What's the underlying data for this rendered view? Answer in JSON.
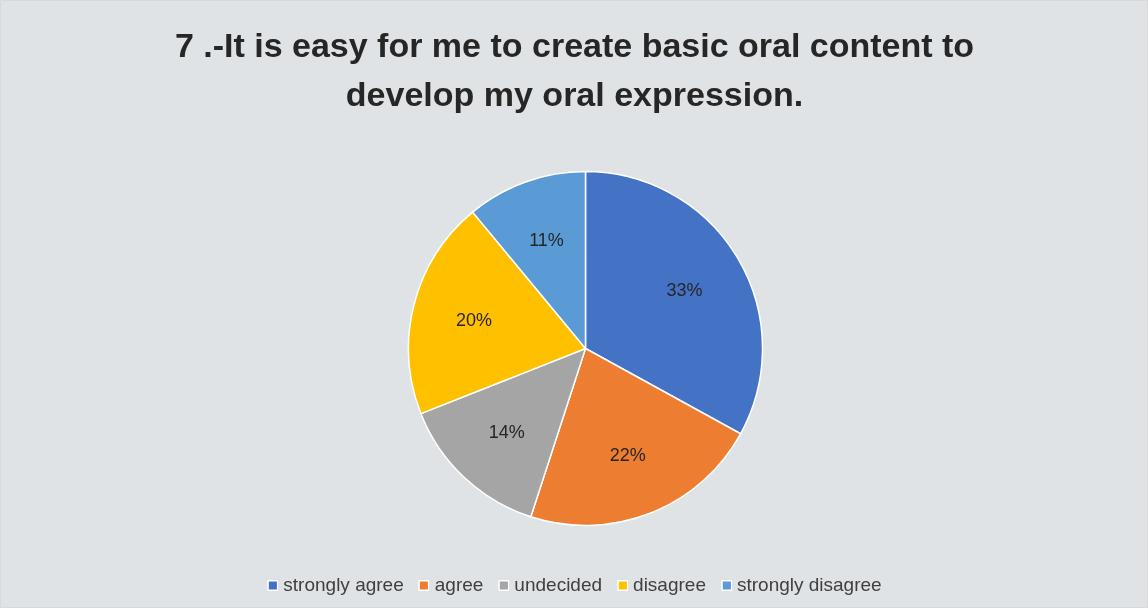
{
  "chart_data": {
    "type": "pie",
    "title": "7 .-It is easy for me to create basic oral content to develop my oral expression.",
    "categories": [
      "strongly agree",
      "agree",
      "undecided",
      "disagree",
      "strongly disagree"
    ],
    "values": [
      33,
      22,
      14,
      20,
      11
    ],
    "colors": [
      "#4472c4",
      "#ed7d31",
      "#a5a5a5",
      "#ffc000",
      "#5b9bd5"
    ],
    "value_labels": [
      "33%",
      "22%",
      "14%",
      "20%",
      "11%"
    ],
    "legend": "bottom"
  }
}
